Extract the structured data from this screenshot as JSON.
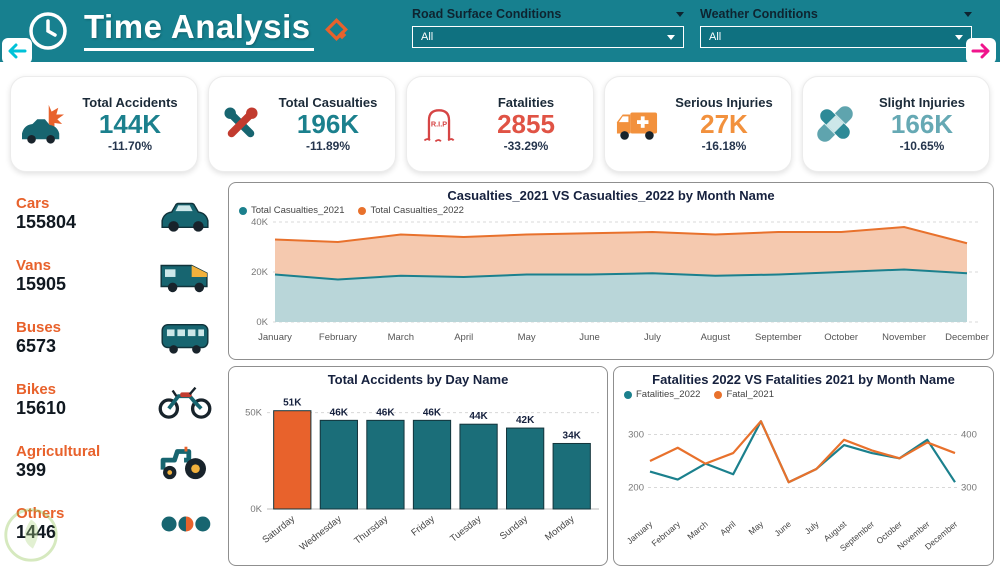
{
  "header": {
    "title": "Time Analysis",
    "filters": [
      {
        "label": "Road Surface Conditions",
        "value": "All"
      },
      {
        "label": "Weather Conditions",
        "value": "All"
      }
    ]
  },
  "theme": {
    "teal": "#17808F",
    "orange": "#E8622C",
    "dark_text": "#1F2C3D"
  },
  "kpis": [
    {
      "title": "Total Accidents",
      "value": "144K",
      "delta": "-11.70%",
      "color": "#1B808D",
      "icon": "car-crash-icon"
    },
    {
      "title": "Total Casualties",
      "value": "196K",
      "delta": "-11.89%",
      "color": "#1B808D",
      "icon": "tools-icon"
    },
    {
      "title": "Fatalities",
      "value": "2855",
      "delta": "-33.29%",
      "color": "#E05345",
      "icon": "tombstone-icon"
    },
    {
      "title": "Serious Injuries",
      "value": "27K",
      "delta": "-16.18%",
      "color": "#F2913D",
      "icon": "ambulance-icon"
    },
    {
      "title": "Slight Injuries",
      "value": "166K",
      "delta": "-10.65%",
      "color": "#66A9B4",
      "icon": "bandage-icon"
    }
  ],
  "vehicles": [
    {
      "label": "Cars",
      "value": "155804",
      "icon": "car-icon"
    },
    {
      "label": "Vans",
      "value": "15905",
      "icon": "van-icon"
    },
    {
      "label": "Buses",
      "value": "6573",
      "icon": "bus-icon"
    },
    {
      "label": "Bikes",
      "value": "15610",
      "icon": "motorcycle-icon"
    },
    {
      "label": "Agricultural",
      "value": "399",
      "icon": "tractor-icon"
    },
    {
      "label": "Others",
      "value": "1446",
      "icon": "others-icon"
    }
  ],
  "chart_data": [
    {
      "type": "area",
      "title": "Casualties_2021 VS Casualties_2022 by Month Name",
      "categories": [
        "January",
        "February",
        "March",
        "April",
        "May",
        "June",
        "July",
        "August",
        "September",
        "October",
        "November",
        "December"
      ],
      "series": [
        {
          "name": "Total Casualties_2021",
          "color": "#1B808D",
          "fill": "#B9D6D9",
          "values": [
            19000,
            17000,
            18500,
            18000,
            19000,
            19000,
            19500,
            18500,
            19000,
            20000,
            21000,
            19500
          ]
        },
        {
          "name": "Total Casualties_2022",
          "color": "#E8712C",
          "fill": "#F5C9AF",
          "values": [
            33000,
            32000,
            35000,
            34000,
            35000,
            35500,
            36000,
            35000,
            36000,
            36000,
            38000,
            31500
          ]
        }
      ],
      "ylim": [
        0,
        40000
      ],
      "yticks": [
        {
          "value": 0,
          "label": "0K"
        },
        {
          "value": 20000,
          "label": "20K"
        },
        {
          "value": 40000,
          "label": "40K"
        }
      ],
      "grid": true,
      "legend_position": "top-left"
    },
    {
      "type": "bar",
      "title": "Total Accidents by Day Name",
      "categories": [
        "Saturday",
        "Wednesday",
        "Thursday",
        "Friday",
        "Tuesday",
        "Sunday",
        "Monday"
      ],
      "values": [
        51,
        46,
        46,
        46,
        44,
        42,
        34
      ],
      "labels": [
        "51K",
        "46K",
        "46K",
        "46K",
        "44K",
        "42K",
        "34K"
      ],
      "colors": [
        "#E8622C",
        "#1B6E79",
        "#1B6E79",
        "#1B6E79",
        "#1B6E79",
        "#1B6E79",
        "#1B6E79"
      ],
      "ylim": [
        0,
        55
      ],
      "yticks": [
        {
          "value": 0,
          "label": "0K"
        },
        {
          "value": 50,
          "label": "50K"
        }
      ],
      "grid": true
    },
    {
      "type": "line",
      "title": "Fatalities 2022 VS Fatalities 2021 by Month Name",
      "categories": [
        "January",
        "February",
        "March",
        "April",
        "May",
        "June",
        "July",
        "August",
        "September",
        "October",
        "November",
        "December"
      ],
      "series": [
        {
          "name": "Fatalities_2022",
          "color": "#1B808D",
          "axis": "left",
          "values": [
            230,
            215,
            245,
            225,
            325,
            210,
            235,
            280,
            265,
            255,
            290,
            210
          ]
        },
        {
          "name": "Fatal_2021",
          "color": "#E8712C",
          "axis": "right",
          "values": [
            350,
            375,
            345,
            365,
            425,
            310,
            335,
            390,
            370,
            355,
            385,
            365
          ]
        }
      ],
      "left_axis": {
        "min": 150,
        "max": 350,
        "ticks": [
          {
            "value": 200,
            "label": "200"
          },
          {
            "value": 300,
            "label": "300"
          }
        ]
      },
      "right_axis": {
        "min": 250,
        "max": 450,
        "ticks": [
          {
            "value": 300,
            "label": "300"
          },
          {
            "value": 400,
            "label": "400"
          }
        ]
      },
      "grid": true,
      "legend_position": "top-left"
    }
  ]
}
